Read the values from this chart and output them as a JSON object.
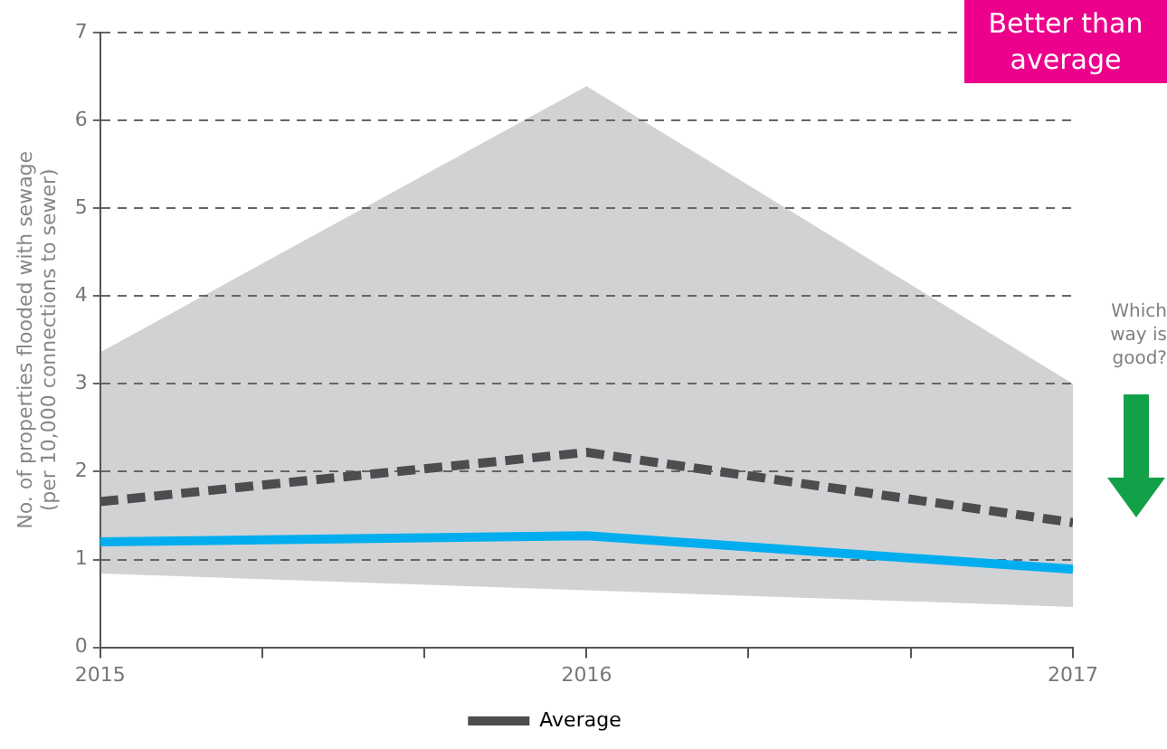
{
  "chart_data": {
    "type": "line",
    "ylabel": "No. of properties flooded with sewage\n(per 10,000 connections to sewer)",
    "x": [
      2015,
      2016,
      2017
    ],
    "series": [
      {
        "color": "#00aeef",
        "values": [
          1.2,
          1.27,
          0.89
        ],
        "line_style": "solid"
      },
      {
        "name": "Average",
        "color": "#4d4d50",
        "values": [
          1.66,
          2.22,
          1.42
        ],
        "line_style": "dashed",
        "lower": [
          0.84,
          0.65,
          0.46
        ],
        "upper": [
          3.36,
          6.39,
          3.0
        ]
      }
    ],
    "xlim": [
      2015,
      2017
    ],
    "xticks": [
      2015,
      {
        "value": 2015.333,
        "label": null
      },
      {
        "value": 2015.667,
        "label": null
      },
      2016,
      {
        "value": 2016.333,
        "label": null
      },
      {
        "value": 2016.667,
        "label": null
      },
      2017
    ],
    "ylim": [
      0,
      7
    ],
    "yticks": [
      0,
      1,
      2,
      3,
      4,
      5,
      6,
      7
    ],
    "grid": "y",
    "legend": "bottom",
    "marker": "none",
    "annotations": [
      "Better than average",
      "Which way is good?"
    ]
  }
}
